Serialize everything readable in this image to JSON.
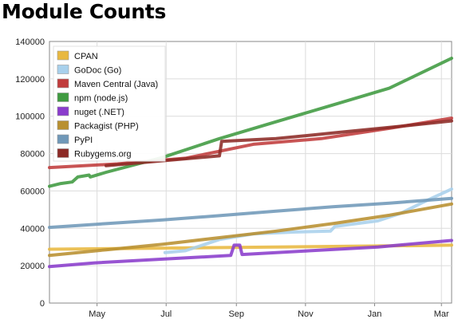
{
  "page": {
    "title": "Module Counts"
  },
  "chart_data": {
    "type": "line",
    "title": "Module Counts",
    "xlabel": "",
    "ylabel": "",
    "x_ticks": [
      "May",
      "Jul",
      "Sep",
      "Nov",
      "Jan",
      "Mar"
    ],
    "x_tick_days": [
      42,
      103,
      165,
      226,
      287,
      346
    ],
    "x_range_days": [
      0,
      355
    ],
    "y_ticks": [
      0,
      20000,
      40000,
      60000,
      80000,
      100000,
      120000,
      140000
    ],
    "ylim": [
      0,
      140000
    ],
    "grid": true,
    "legend_position": "top-left",
    "series": [
      {
        "name": "CPAN",
        "color": "#e8b840",
        "points": [
          [
            0,
            28800
          ],
          [
            100,
            29400
          ],
          [
            200,
            30000
          ],
          [
            300,
            30600
          ],
          [
            355,
            31000
          ]
        ]
      },
      {
        "name": "GoDoc (Go)",
        "color": "#a8d0ec",
        "points": [
          [
            102,
            27000
          ],
          [
            120,
            28000
          ],
          [
            150,
            34000
          ],
          [
            180,
            37000
          ],
          [
            215,
            38000
          ],
          [
            248,
            38500
          ],
          [
            252,
            41000
          ],
          [
            290,
            44000
          ],
          [
            310,
            48000
          ],
          [
            330,
            54000
          ],
          [
            355,
            61000
          ]
        ]
      },
      {
        "name": "Maven Central (Java)",
        "color": "#c03c3c",
        "points": [
          [
            0,
            72500
          ],
          [
            60,
            74500
          ],
          [
            120,
            77500
          ],
          [
            180,
            85000
          ],
          [
            240,
            88000
          ],
          [
            300,
            93500
          ],
          [
            355,
            99000
          ]
        ]
      },
      {
        "name": "npm (node.js)",
        "color": "#3f9a40",
        "points": [
          [
            0,
            62500
          ],
          [
            10,
            64000
          ],
          [
            20,
            64800
          ],
          [
            25,
            67500
          ],
          [
            35,
            68500
          ],
          [
            36,
            67500
          ],
          [
            50,
            70000
          ],
          [
            100,
            78000
          ],
          [
            150,
            88000
          ],
          [
            200,
            97000
          ],
          [
            250,
            106000
          ],
          [
            300,
            115000
          ],
          [
            355,
            131000
          ]
        ]
      },
      {
        "name": "nuget (.NET)",
        "color": "#8a3ccc",
        "points": [
          [
            0,
            19500
          ],
          [
            40,
            21500
          ],
          [
            100,
            23500
          ],
          [
            160,
            25500
          ],
          [
            163,
            31000
          ],
          [
            168,
            31000
          ],
          [
            170,
            26000
          ],
          [
            230,
            28000
          ],
          [
            290,
            30000
          ],
          [
            355,
            33500
          ]
        ]
      },
      {
        "name": "Packagist (PHP)",
        "color": "#b89030",
        "points": [
          [
            0,
            25500
          ],
          [
            50,
            28500
          ],
          [
            100,
            31500
          ],
          [
            150,
            35000
          ],
          [
            200,
            38500
          ],
          [
            250,
            42500
          ],
          [
            300,
            47000
          ],
          [
            355,
            53000
          ]
        ]
      },
      {
        "name": "PyPI",
        "color": "#7098b8",
        "points": [
          [
            0,
            40500
          ],
          [
            50,
            42500
          ],
          [
            100,
            44500
          ],
          [
            150,
            46800
          ],
          [
            200,
            49200
          ],
          [
            250,
            51500
          ],
          [
            300,
            53500
          ],
          [
            355,
            56000
          ]
        ]
      },
      {
        "name": "Rubygems.org",
        "color": "#8c2a26",
        "points": [
          [
            50,
            73500
          ],
          [
            150,
            78800
          ],
          [
            152,
            86500
          ],
          [
            200,
            88000
          ],
          [
            250,
            91000
          ],
          [
            300,
            94000
          ],
          [
            355,
            97500
          ]
        ]
      }
    ]
  }
}
